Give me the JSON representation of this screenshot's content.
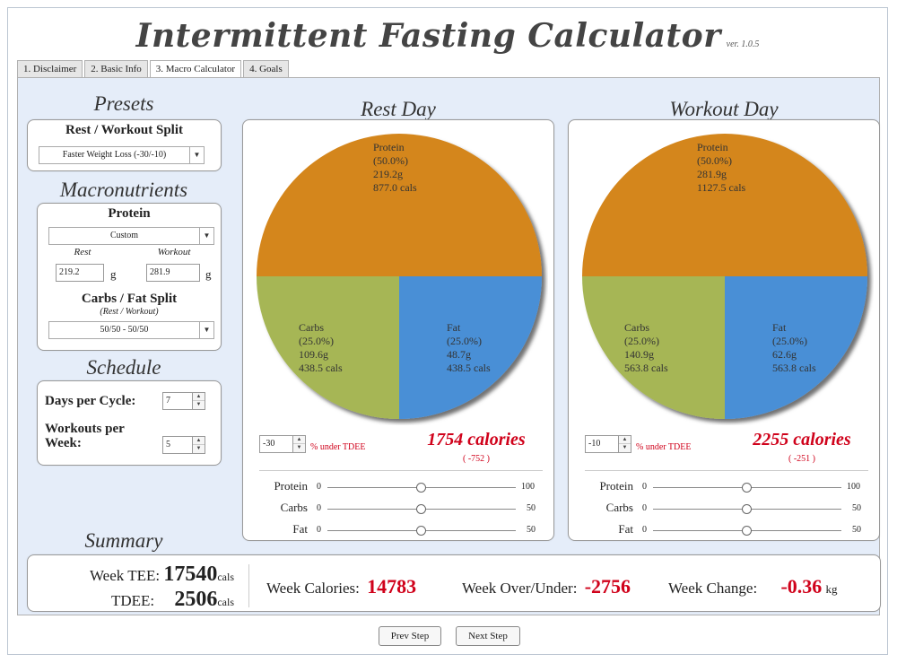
{
  "app": {
    "title": "Intermittent Fasting Calculator",
    "version": "ver. 1.0.5"
  },
  "tabs": [
    {
      "label": "1. Disclaimer"
    },
    {
      "label": "2. Basic Info"
    },
    {
      "label": "3. Macro Calculator"
    },
    {
      "label": "4. Goals"
    }
  ],
  "presets": {
    "title": "Presets",
    "split_label": "Rest / Workout Split",
    "split_value": "Faster Weight Loss (-30/-10)"
  },
  "macros": {
    "title": "Macronutrients",
    "protein_label": "Protein",
    "protein_mode": "Custom",
    "rest_label": "Rest",
    "workout_label": "Workout",
    "rest_value": "219.2",
    "workout_value": "281.9",
    "unit": "g",
    "carbs_fat_label": "Carbs / Fat Split",
    "carbs_fat_sub": "(Rest / Workout)",
    "carbs_fat_value": "50/50 - 50/50"
  },
  "schedule": {
    "title": "Schedule",
    "days_label": "Days per Cycle:",
    "days_value": "7",
    "workouts_label": "Workouts per Week:",
    "workouts_value": "5"
  },
  "rest_day": {
    "title": "Rest Day",
    "protein": {
      "name": "Protein",
      "pct": "(50.0%)",
      "grams": "219.2g",
      "cals": "877.0 cals"
    },
    "carbs": {
      "name": "Carbs",
      "pct": "(25.0%)",
      "grams": "109.6g",
      "cals": "438.5 cals"
    },
    "fat": {
      "name": "Fat",
      "pct": "(25.0%)",
      "grams": "48.7g",
      "cals": "438.5 cals"
    },
    "tdee_offset": "-30",
    "under_label": "% under TDEE",
    "calories": "1754 calories",
    "delta": "( -752 )",
    "sliders": [
      {
        "label": "Protein",
        "min": "0",
        "max": "100",
        "value": 50
      },
      {
        "label": "Carbs",
        "min": "0",
        "max": "50",
        "value": 25
      },
      {
        "label": "Fat",
        "min": "0",
        "max": "50",
        "value": 25
      }
    ]
  },
  "workout_day": {
    "title": "Workout Day",
    "protein": {
      "name": "Protein",
      "pct": "(50.0%)",
      "grams": "281.9g",
      "cals": "1127.5 cals"
    },
    "carbs": {
      "name": "Carbs",
      "pct": "(25.0%)",
      "grams": "140.9g",
      "cals": "563.8 cals"
    },
    "fat": {
      "name": "Fat",
      "pct": "(25.0%)",
      "grams": "62.6g",
      "cals": "563.8 cals"
    },
    "tdee_offset": "-10",
    "under_label": "% under TDEE",
    "calories": "2255 calories",
    "delta": "( -251 )",
    "sliders": [
      {
        "label": "Protein",
        "min": "0",
        "max": "100",
        "value": 50
      },
      {
        "label": "Carbs",
        "min": "0",
        "max": "50",
        "value": 25
      },
      {
        "label": "Fat",
        "min": "0",
        "max": "50",
        "value": 25
      }
    ]
  },
  "summary": {
    "title": "Summary",
    "week_tee_label": "Week TEE:",
    "week_tee_value": "17540",
    "tdee_label": "TDEE:",
    "tdee_value": "2506",
    "cals_unit": "cals",
    "week_calories_label": "Week Calories:",
    "week_calories_value": "14783",
    "week_over_under_label": "Week Over/Under:",
    "week_over_under_value": "-2756",
    "week_change_label": "Week Change:",
    "week_change_value": "-0.36",
    "kg_unit": "kg"
  },
  "nav": {
    "prev": "Prev Step",
    "next": "Next Step"
  },
  "colors": {
    "protein": "#d4861f",
    "carbs": "#a6b655",
    "fat": "#4a8fd6",
    "accent_red": "#d0021b"
  }
}
